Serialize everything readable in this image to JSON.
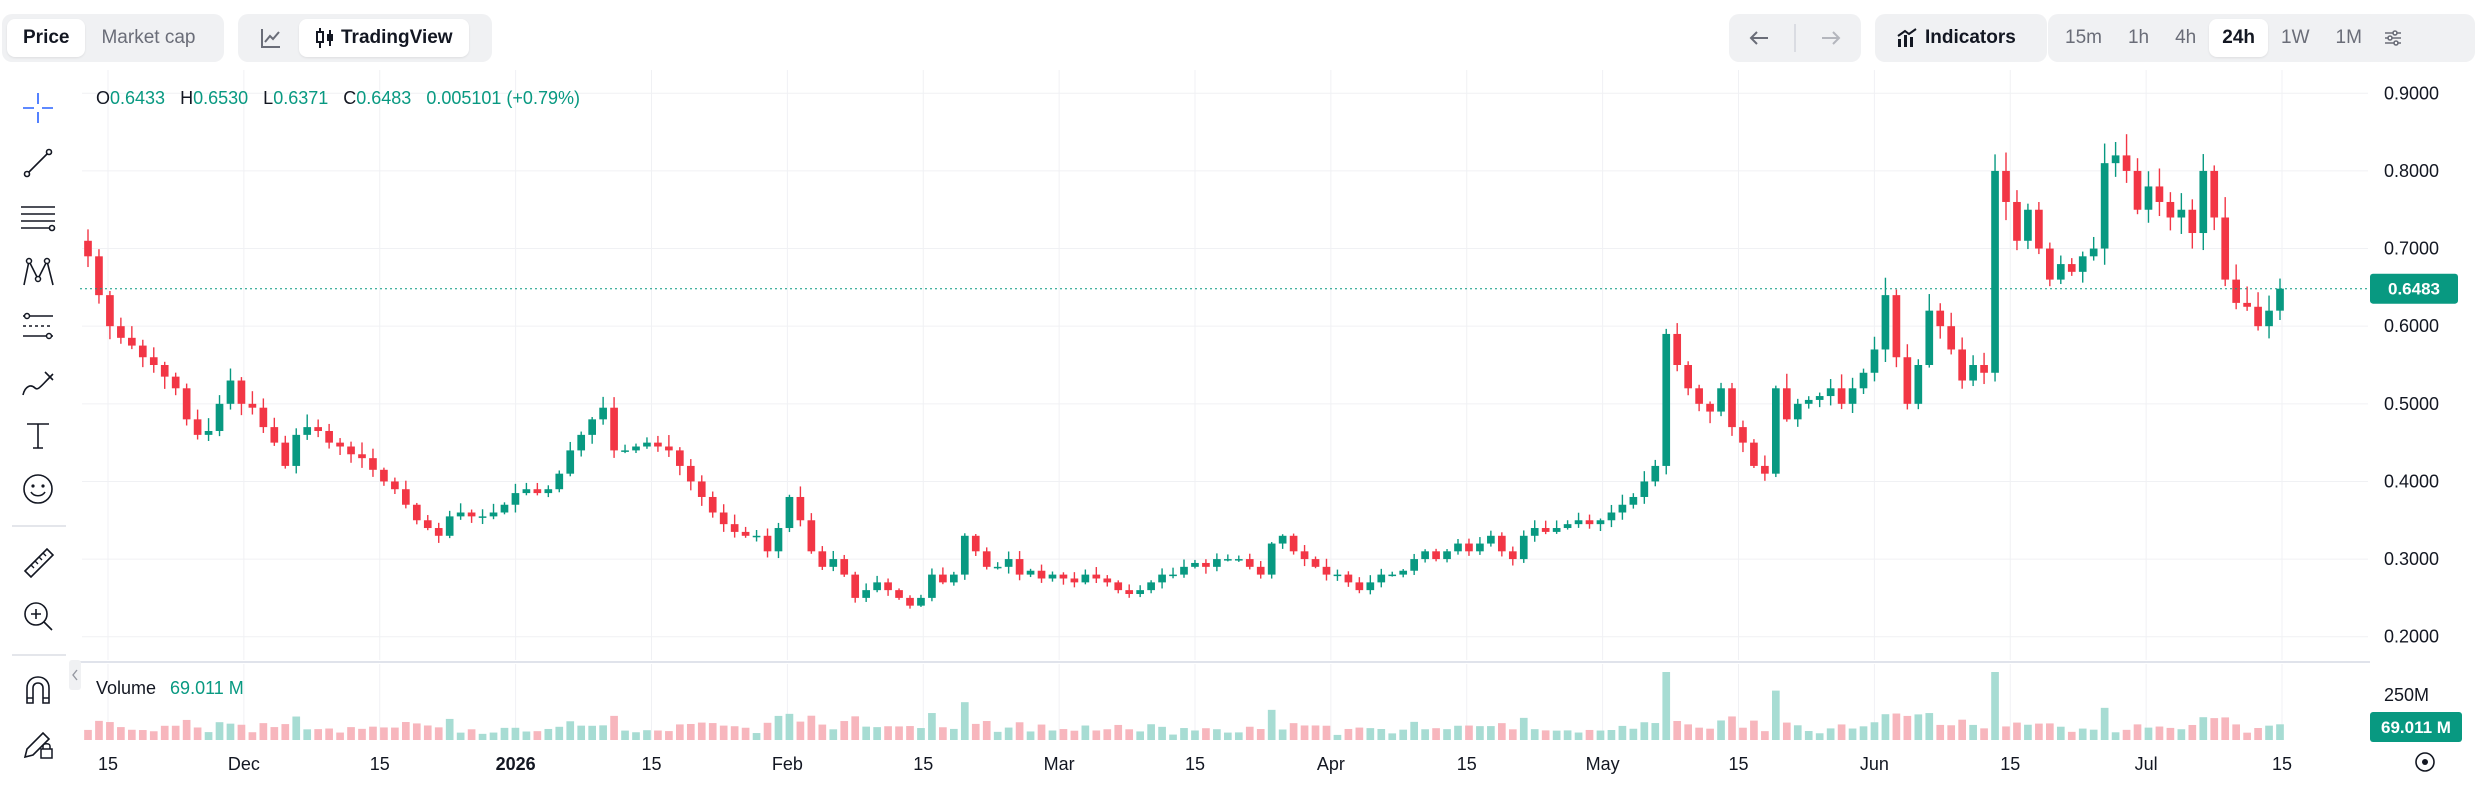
{
  "toolbar": {
    "price_label": "Price",
    "market_cap_label": "Market cap",
    "tradingview_label": "TradingView",
    "indicators_label": "Indicators",
    "intervals": [
      "15m",
      "1h",
      "4h",
      "24h",
      "1W",
      "1M"
    ],
    "active_interval": "24h"
  },
  "legend": {
    "o_label": "O",
    "o_value": "0.6433",
    "h_label": "H",
    "h_value": "0.6530",
    "l_label": "L",
    "l_value": "0.6371",
    "c_label": "C",
    "c_value": "0.6483",
    "change": "0.005101 (+0.79%)"
  },
  "volume_legend": {
    "label": "Volume",
    "value": "69.011 M"
  },
  "colors": {
    "up": "#089981",
    "down": "#f23645",
    "vol_up": "#a7dcd3",
    "vol_down": "#f7b6bd",
    "grid": "#f0f1f4",
    "accent": "#089981"
  },
  "chart_data": {
    "type": "candlestick",
    "y_ticks": [
      "0.2000",
      "0.3000",
      "0.4000",
      "0.5000",
      "0.6000",
      "0.7000",
      "0.8000",
      "0.9000"
    ],
    "ylim": [
      0.17,
      0.93
    ],
    "x_ticks": [
      "15",
      "Dec",
      "15",
      "2026",
      "15",
      "Feb",
      "15",
      "Mar",
      "15",
      "Apr",
      "15",
      "May",
      "15",
      "Jun",
      "15",
      "Jul",
      "15"
    ],
    "x_tick_bold": [
      false,
      false,
      false,
      true,
      false,
      false,
      false,
      false,
      false,
      false,
      false,
      false,
      false,
      false,
      false,
      false,
      false
    ],
    "last_price": "0.6483",
    "last_volume": "69.011 M",
    "volume_axis_label": "250M",
    "closes": [
      0.69,
      0.64,
      0.6,
      0.585,
      0.575,
      0.56,
      0.55,
      0.535,
      0.52,
      0.48,
      0.46,
      0.465,
      0.5,
      0.53,
      0.5,
      0.495,
      0.47,
      0.45,
      0.42,
      0.46,
      0.47,
      0.465,
      0.45,
      0.445,
      0.435,
      0.43,
      0.415,
      0.4,
      0.39,
      0.37,
      0.35,
      0.34,
      0.33,
      0.355,
      0.36,
      0.355,
      0.355,
      0.36,
      0.37,
      0.385,
      0.39,
      0.385,
      0.39,
      0.41,
      0.44,
      0.46,
      0.48,
      0.495,
      0.44,
      0.44,
      0.445,
      0.45,
      0.445,
      0.44,
      0.42,
      0.4,
      0.38,
      0.36,
      0.345,
      0.335,
      0.33,
      0.33,
      0.31,
      0.34,
      0.38,
      0.35,
      0.31,
      0.29,
      0.3,
      0.28,
      0.25,
      0.26,
      0.27,
      0.26,
      0.25,
      0.24,
      0.25,
      0.28,
      0.27,
      0.28,
      0.33,
      0.31,
      0.29,
      0.29,
      0.3,
      0.28,
      0.285,
      0.275,
      0.28,
      0.275,
      0.27,
      0.28,
      0.275,
      0.27,
      0.26,
      0.255,
      0.26,
      0.27,
      0.28,
      0.28,
      0.29,
      0.295,
      0.29,
      0.3,
      0.3,
      0.3,
      0.29,
      0.28,
      0.32,
      0.33,
      0.31,
      0.3,
      0.29,
      0.28,
      0.28,
      0.27,
      0.26,
      0.27,
      0.28,
      0.28,
      0.285,
      0.3,
      0.31,
      0.3,
      0.31,
      0.32,
      0.31,
      0.32,
      0.33,
      0.31,
      0.3,
      0.33,
      0.34,
      0.335,
      0.34,
      0.345,
      0.35,
      0.345,
      0.35,
      0.36,
      0.37,
      0.38,
      0.4,
      0.42,
      0.59,
      0.55,
      0.52,
      0.5,
      0.49,
      0.52,
      0.47,
      0.45,
      0.42,
      0.41,
      0.52,
      0.48,
      0.5,
      0.505,
      0.51,
      0.52,
      0.5,
      0.52,
      0.54,
      0.57,
      0.64,
      0.56,
      0.5,
      0.55,
      0.62,
      0.6,
      0.57,
      0.53,
      0.55,
      0.54,
      0.8,
      0.76,
      0.71,
      0.75,
      0.7,
      0.66,
      0.68,
      0.67,
      0.69,
      0.7,
      0.81,
      0.82,
      0.8,
      0.75,
      0.78,
      0.76,
      0.74,
      0.75,
      0.72,
      0.8,
      0.74,
      0.66,
      0.63,
      0.625,
      0.6,
      0.62,
      0.6483
    ]
  }
}
